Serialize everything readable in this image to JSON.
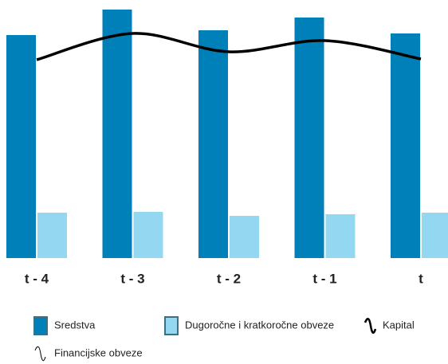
{
  "chart_data": {
    "type": "bar",
    "categories": [
      "t - 4",
      "t - 3",
      "t - 2",
      "t - 1",
      "t"
    ],
    "ylim": [
      0,
      324
    ],
    "series": [
      {
        "name": "Sredstva",
        "type": "bar",
        "color": "#0080b8",
        "values": [
          280,
          312,
          286,
          302,
          282
        ]
      },
      {
        "name": "Dugoročne i kratkoročne obveze",
        "type": "bar",
        "color": "#93d8f0",
        "values": [
          57,
          58,
          53,
          55,
          57
        ]
      },
      {
        "name": "Kapital",
        "type": "line",
        "color": "#000000",
        "values": [
          249,
          282,
          259,
          273,
          250
        ]
      },
      {
        "name": "Financijske obveze",
        "type": "line",
        "color": "#000000",
        "values": [
          null,
          null,
          null,
          null,
          null
        ]
      }
    ]
  }
}
